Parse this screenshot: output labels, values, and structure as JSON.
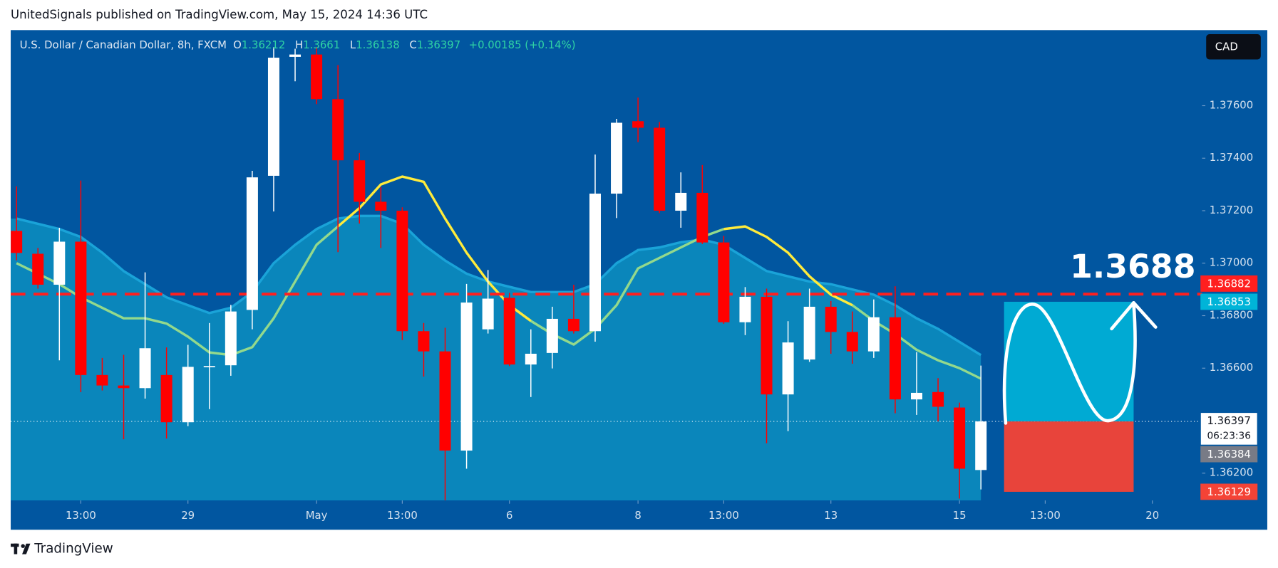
{
  "header": {
    "text": "UnitedSignals published on TradingView.com, May 15, 2024 14:36 UTC"
  },
  "footer": {
    "brand": "TradingView"
  },
  "chart_data": {
    "type": "candlestick",
    "symbol": "U.S. Dollar / Canadian Dollar, 8h, FXCM",
    "legend": [
      {
        "label": "O",
        "value": 1.36212
      },
      {
        "label": "H",
        "value": 1.3661
      },
      {
        "label": "L",
        "value": 1.36138
      },
      {
        "label": "C",
        "value": 1.36397
      }
    ],
    "change": "+0.00185 (+0.14%)",
    "currency": "CAD",
    "candles": {
      "up_color": "#ffffff",
      "down_color": "#ff0000",
      "open": [
        1.37123,
        1.37036,
        1.36918,
        1.37082,
        1.36574,
        1.36534,
        1.36524,
        1.36574,
        1.36394,
        1.36605,
        1.36611,
        1.36822,
        1.37333,
        1.37786,
        1.37795,
        1.37625,
        1.37392,
        1.37234,
        1.372,
        1.36741,
        1.36664,
        1.36286,
        1.36748,
        1.36868,
        1.36614,
        1.36658,
        1.36788,
        1.36741,
        1.37265,
        1.37541,
        1.37516,
        1.372,
        1.37268,
        1.37079,
        1.36775,
        1.36872,
        1.365,
        1.36633,
        1.36834,
        1.36738,
        1.36664,
        1.36794,
        1.36481,
        1.36509,
        1.3645,
        1.36212
      ],
      "high": [
        1.37293,
        1.37058,
        1.37135,
        1.37315,
        1.36639,
        1.36651,
        1.36965,
        1.36679,
        1.36689,
        1.36772,
        1.36841,
        1.37352,
        1.37823,
        1.37817,
        1.37823,
        1.37755,
        1.3742,
        1.3729,
        1.37213,
        1.36772,
        1.36754,
        1.36921,
        1.36974,
        1.36887,
        1.36748,
        1.36834,
        1.36918,
        1.37414,
        1.3755,
        1.37631,
        1.37538,
        1.37346,
        1.37374,
        1.37104,
        1.36909,
        1.36903,
        1.36779,
        1.36903,
        1.36856,
        1.36816,
        1.36862,
        1.36912,
        1.36661,
        1.36562,
        1.36469,
        1.3661
      ],
      "low": [
        1.37011,
        1.36903,
        1.3663,
        1.36509,
        1.36515,
        1.36329,
        1.36484,
        1.36332,
        1.36379,
        1.36444,
        1.36571,
        1.36748,
        1.37197,
        1.37693,
        1.37606,
        1.37042,
        1.37151,
        1.37058,
        1.36707,
        1.36568,
        1.36097,
        1.36217,
        1.36732,
        1.36608,
        1.3649,
        1.36599,
        1.36732,
        1.36701,
        1.37172,
        1.37461,
        1.37191,
        1.37135,
        1.37073,
        1.36769,
        1.36726,
        1.36314,
        1.3636,
        1.36624,
        1.36655,
        1.36617,
        1.36639,
        1.36428,
        1.36422,
        1.36397,
        1.36103,
        1.36138
      ],
      "close": [
        1.37039,
        1.36918,
        1.37082,
        1.36574,
        1.36534,
        1.36524,
        1.36676,
        1.36394,
        1.36605,
        1.36608,
        1.36816,
        1.37327,
        1.37783,
        1.37795,
        1.37625,
        1.37392,
        1.37234,
        1.372,
        1.36741,
        1.36664,
        1.36286,
        1.3685,
        1.36865,
        1.36614,
        1.36655,
        1.36788,
        1.36741,
        1.37265,
        1.37535,
        1.37516,
        1.372,
        1.37268,
        1.37079,
        1.36775,
        1.36872,
        1.365,
        1.36698,
        1.36834,
        1.36738,
        1.36664,
        1.36794,
        1.36481,
        1.36506,
        1.36453,
        1.36217,
        1.36397
      ]
    },
    "band": {
      "color": "#0a86bb",
      "line_color": "#1aa3d8",
      "values": [
        1.3717,
        1.3715,
        1.3713,
        1.371,
        1.3704,
        1.3697,
        1.3692,
        1.3687,
        1.3684,
        1.3681,
        1.3683,
        1.3689,
        1.37,
        1.3707,
        1.3713,
        1.3717,
        1.3718,
        1.3718,
        1.3715,
        1.3707,
        1.3701,
        1.3696,
        1.3693,
        1.3691,
        1.3689,
        1.3689,
        1.3689,
        1.3692,
        1.37,
        1.3705,
        1.3706,
        1.3708,
        1.3709,
        1.3707,
        1.3702,
        1.3697,
        1.3695,
        1.3693,
        1.3692,
        1.369,
        1.3688,
        1.3684,
        1.3679,
        1.3675,
        1.367,
        1.3665
      ]
    },
    "indicators": [
      {
        "color": "#93d98c",
        "values": [
          1.37,
          1.3696,
          1.3692,
          1.3687,
          1.3683,
          1.3679,
          1.3679,
          1.3677,
          1.3672,
          1.3666,
          1.3665,
          1.3668,
          1.3679,
          1.3693,
          1.3707,
          1.3714,
          null,
          null,
          null,
          null,
          null,
          null,
          null,
          1.3684,
          1.3678,
          1.3673,
          1.3669,
          1.3675,
          1.3684,
          1.3698,
          1.3702,
          1.3706,
          1.371,
          1.3713,
          null,
          null,
          null,
          null,
          1.3688,
          1.3684,
          1.3678,
          1.3673,
          1.3667,
          1.3663,
          1.366,
          1.3656
        ]
      },
      {
        "color": "#ffeb3b",
        "values": [
          null,
          null,
          null,
          null,
          null,
          null,
          null,
          null,
          null,
          null,
          null,
          null,
          null,
          null,
          null,
          1.3714,
          1.3721,
          1.373,
          1.3733,
          1.3731,
          1.3717,
          1.3704,
          1.3693,
          1.3684,
          1.3678,
          null,
          null,
          null,
          null,
          null,
          null,
          null,
          null,
          1.3713,
          1.3714,
          1.371,
          1.3704,
          1.3695,
          1.3688,
          1.3684,
          null,
          null,
          null,
          null,
          null,
          null
        ]
      }
    ],
    "level": {
      "value": 1.36882,
      "color": "#ff1f1f"
    },
    "position": {
      "entry": 1.36397,
      "target": 1.36853,
      "stop": 1.36129,
      "target_color": "#00b4d8",
      "stop_color": "#f44336"
    },
    "annotation": "1.3688",
    "countdown": "06:23:36",
    "price_tags": [
      {
        "value": 1.36384,
        "color": "#787b86"
      }
    ],
    "xlim": [
      -0.27,
      55.32
    ],
    "ylim": [
      1.36096,
      1.37888
    ],
    "xticks": [
      {
        "value": 3,
        "label": "13:00"
      },
      {
        "value": 8,
        "label": "29"
      },
      {
        "value": 14,
        "label": "May"
      },
      {
        "value": 18,
        "label": "13:00"
      },
      {
        "value": 23,
        "label": "6"
      },
      {
        "value": 29,
        "label": "8"
      },
      {
        "value": 33,
        "label": "13:00"
      },
      {
        "value": 38,
        "label": "13"
      },
      {
        "value": 44,
        "label": "15"
      },
      {
        "value": 48,
        "label": "13:00"
      },
      {
        "value": 53,
        "label": "20"
      }
    ],
    "yticks": [
      {
        "value": 1.362,
        "label": "1.36200"
      },
      {
        "value": 1.366,
        "label": "1.36600"
      },
      {
        "value": 1.368,
        "label": "1.36800"
      },
      {
        "value": 1.37,
        "label": "1.37000"
      },
      {
        "value": 1.372,
        "label": "1.37200"
      },
      {
        "value": 1.374,
        "label": "1.37400"
      },
      {
        "value": 1.376,
        "label": "1.37600"
      }
    ]
  }
}
